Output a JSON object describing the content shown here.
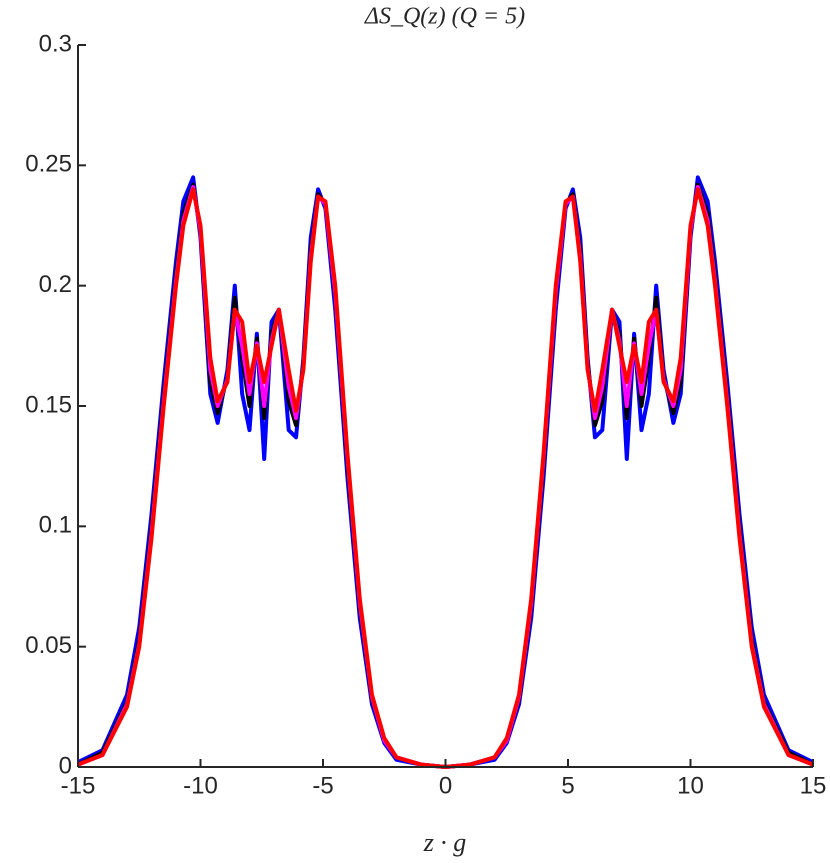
{
  "chart_data": {
    "type": "line",
    "title": "ΔS_Q(z) (Q = 5)",
    "xlabel": "z · g",
    "x": [
      -15,
      -14,
      -13,
      -12.5,
      -12,
      -11.5,
      -11,
      -10.7,
      -10.3,
      -10,
      -9.6,
      -9.3,
      -8.9,
      -8.6,
      -8.3,
      -8,
      -7.7,
      -7.4,
      -7.1,
      -6.8,
      -6.4,
      -6.1,
      -5.8,
      -5.5,
      -5.2,
      -4.9,
      -4.5,
      -4,
      -3.5,
      -3,
      -2.5,
      -2,
      -1,
      0,
      1,
      2,
      2.5,
      3,
      3.5,
      4,
      4.5,
      4.9,
      5.2,
      5.5,
      5.8,
      6.1,
      6.4,
      6.8,
      7.1,
      7.4,
      7.7,
      8,
      8.3,
      8.6,
      8.9,
      9.3,
      9.6,
      10,
      10.3,
      10.7,
      11,
      11.5,
      12,
      12.5,
      13,
      14,
      15
    ],
    "series": [
      {
        "color": "#0000ff",
        "values": [
          0.002,
          0.007,
          0.03,
          0.058,
          0.105,
          0.16,
          0.21,
          0.235,
          0.245,
          0.22,
          0.155,
          0.143,
          0.165,
          0.2,
          0.155,
          0.14,
          0.18,
          0.128,
          0.185,
          0.19,
          0.14,
          0.137,
          0.17,
          0.22,
          0.24,
          0.232,
          0.19,
          0.12,
          0.062,
          0.026,
          0.01,
          0.003,
          0.001,
          0,
          0.001,
          0.003,
          0.01,
          0.026,
          0.062,
          0.12,
          0.19,
          0.232,
          0.24,
          0.22,
          0.17,
          0.137,
          0.14,
          0.19,
          0.185,
          0.128,
          0.18,
          0.14,
          0.155,
          0.2,
          0.165,
          0.143,
          0.155,
          0.22,
          0.245,
          0.235,
          0.21,
          0.16,
          0.105,
          0.058,
          0.03,
          0.007,
          0.002
        ]
      },
      {
        "color": "#000000",
        "values": [
          0.001,
          0.006,
          0.027,
          0.053,
          0.1,
          0.155,
          0.205,
          0.23,
          0.242,
          0.222,
          0.16,
          0.147,
          0.162,
          0.195,
          0.17,
          0.15,
          0.178,
          0.145,
          0.18,
          0.19,
          0.152,
          0.142,
          0.168,
          0.215,
          0.238,
          0.234,
          0.195,
          0.125,
          0.066,
          0.028,
          0.011,
          0.004,
          0.001,
          0,
          0.001,
          0.004,
          0.011,
          0.028,
          0.066,
          0.125,
          0.195,
          0.234,
          0.238,
          0.215,
          0.168,
          0.142,
          0.152,
          0.19,
          0.18,
          0.145,
          0.178,
          0.15,
          0.17,
          0.195,
          0.162,
          0.147,
          0.16,
          0.222,
          0.242,
          0.23,
          0.205,
          0.155,
          0.1,
          0.053,
          0.027,
          0.006,
          0.001
        ]
      },
      {
        "color": "#ff00ff",
        "values": [
          0.001,
          0.005,
          0.026,
          0.051,
          0.097,
          0.152,
          0.202,
          0.227,
          0.241,
          0.223,
          0.165,
          0.15,
          0.161,
          0.19,
          0.175,
          0.155,
          0.176,
          0.15,
          0.177,
          0.19,
          0.158,
          0.145,
          0.166,
          0.212,
          0.237,
          0.234,
          0.197,
          0.128,
          0.068,
          0.029,
          0.011,
          0.004,
          0.001,
          0,
          0.001,
          0.004,
          0.011,
          0.029,
          0.068,
          0.128,
          0.197,
          0.234,
          0.237,
          0.212,
          0.166,
          0.145,
          0.158,
          0.19,
          0.177,
          0.15,
          0.176,
          0.155,
          0.175,
          0.19,
          0.161,
          0.15,
          0.165,
          0.223,
          0.241,
          0.227,
          0.202,
          0.152,
          0.097,
          0.051,
          0.026,
          0.005,
          0.001
        ]
      },
      {
        "color": "#ff0000",
        "values": [
          0.001,
          0.005,
          0.025,
          0.05,
          0.095,
          0.15,
          0.2,
          0.225,
          0.24,
          0.225,
          0.17,
          0.152,
          0.16,
          0.19,
          0.185,
          0.16,
          0.175,
          0.16,
          0.175,
          0.19,
          0.165,
          0.148,
          0.165,
          0.21,
          0.237,
          0.235,
          0.2,
          0.13,
          0.07,
          0.03,
          0.012,
          0.004,
          0.001,
          0,
          0.001,
          0.004,
          0.012,
          0.03,
          0.07,
          0.13,
          0.2,
          0.235,
          0.237,
          0.21,
          0.165,
          0.148,
          0.165,
          0.19,
          0.175,
          0.16,
          0.175,
          0.16,
          0.185,
          0.19,
          0.16,
          0.152,
          0.17,
          0.225,
          0.24,
          0.225,
          0.2,
          0.15,
          0.095,
          0.05,
          0.025,
          0.005,
          0.001
        ]
      }
    ],
    "xlim": [
      -15,
      15
    ],
    "xticks": [
      -15,
      -10,
      -5,
      0,
      5,
      10,
      15
    ],
    "ylim": [
      0,
      0.3
    ],
    "yticks": [
      0,
      0.05,
      0.1,
      0.15,
      0.2,
      0.25,
      0.3
    ]
  }
}
